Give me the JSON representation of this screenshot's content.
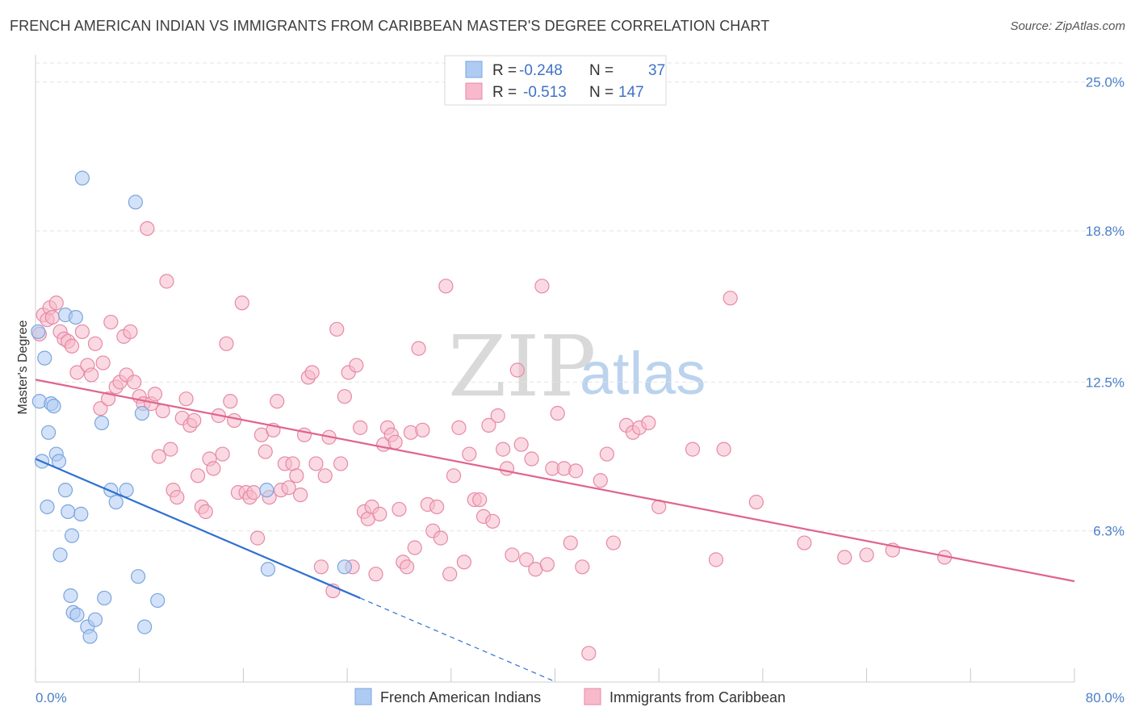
{
  "header": {
    "title": "FRENCH AMERICAN INDIAN VS IMMIGRANTS FROM CARIBBEAN MASTER'S DEGREE CORRELATION CHART",
    "source": "Source: ZipAtlas.com"
  },
  "watermark": {
    "zip": "ZIP",
    "atlas": "atlas"
  },
  "legend_box": {
    "rows": [
      {
        "r_label": "R =",
        "r_value": "-0.248",
        "n_label": "N =",
        "n_value": "37",
        "color": "#aecbf2"
      },
      {
        "r_label": "R =",
        "r_value": "-0.513",
        "n_label": "N =",
        "n_value": "147",
        "color": "#f7b9cb"
      }
    ]
  },
  "chart_data": {
    "type": "scatter",
    "title": "FRENCH AMERICAN INDIAN VS IMMIGRANTS FROM CARIBBEAN MASTER'S DEGREE CORRELATION CHART",
    "xlabel": "",
    "ylabel": "Master's Degree",
    "xlim": [
      0,
      80
    ],
    "ylim": [
      0,
      26
    ],
    "x_tick_labels": [
      "0.0%",
      "80.0%"
    ],
    "y_ticks": [
      6.3,
      12.5,
      18.8,
      25.0
    ],
    "y_tick_labels": [
      "6.3%",
      "12.5%",
      "18.8%",
      "25.0%"
    ],
    "grid": true,
    "legend_position": "bottom",
    "series": [
      {
        "name": "French American Indians",
        "color": "#aecbf2",
        "stroke": "#7aa6de",
        "trend": {
          "x0": 0,
          "y0": 9.3,
          "x1": 25,
          "y1": 3.5,
          "dashed_to_x": 40,
          "color": "#2f6fd1"
        },
        "points": [
          [
            0.2,
            14.6
          ],
          [
            0.3,
            11.7
          ],
          [
            0.5,
            9.2
          ],
          [
            0.7,
            13.5
          ],
          [
            0.9,
            7.3
          ],
          [
            1.0,
            10.4
          ],
          [
            1.2,
            11.6
          ],
          [
            1.4,
            11.5
          ],
          [
            1.6,
            9.5
          ],
          [
            1.8,
            9.2
          ],
          [
            1.9,
            5.3
          ],
          [
            2.3,
            15.3
          ],
          [
            2.3,
            8.0
          ],
          [
            2.5,
            7.1
          ],
          [
            2.7,
            3.6
          ],
          [
            2.8,
            6.1
          ],
          [
            2.9,
            2.9
          ],
          [
            3.1,
            15.2
          ],
          [
            3.2,
            2.8
          ],
          [
            3.5,
            7.0
          ],
          [
            3.6,
            21.0
          ],
          [
            4.0,
            2.3
          ],
          [
            4.2,
            1.9
          ],
          [
            4.6,
            2.6
          ],
          [
            5.1,
            10.8
          ],
          [
            5.3,
            3.5
          ],
          [
            5.8,
            8.0
          ],
          [
            6.2,
            7.5
          ],
          [
            7.0,
            8.0
          ],
          [
            7.7,
            20.0
          ],
          [
            7.9,
            4.4
          ],
          [
            8.2,
            11.2
          ],
          [
            8.4,
            2.3
          ],
          [
            9.4,
            3.4
          ],
          [
            17.8,
            8.0
          ],
          [
            17.9,
            4.7
          ],
          [
            23.8,
            4.8
          ]
        ]
      },
      {
        "name": "Immigrants from Caribbean",
        "color": "#f7b9cb",
        "stroke": "#e58aa6",
        "trend": {
          "x0": 0,
          "y0": 12.6,
          "x1": 80,
          "y1": 4.2,
          "color": "#e0648f"
        },
        "points": [
          [
            0.3,
            14.5
          ],
          [
            0.6,
            15.3
          ],
          [
            0.9,
            15.1
          ],
          [
            1.1,
            15.6
          ],
          [
            1.3,
            15.2
          ],
          [
            1.6,
            15.8
          ],
          [
            1.9,
            14.6
          ],
          [
            2.2,
            14.3
          ],
          [
            2.5,
            14.2
          ],
          [
            2.8,
            14.0
          ],
          [
            3.2,
            12.9
          ],
          [
            3.6,
            14.6
          ],
          [
            4.0,
            13.2
          ],
          [
            4.3,
            12.8
          ],
          [
            4.6,
            14.1
          ],
          [
            5.0,
            11.4
          ],
          [
            5.2,
            13.3
          ],
          [
            5.6,
            11.8
          ],
          [
            5.8,
            15.0
          ],
          [
            6.2,
            12.3
          ],
          [
            6.5,
            12.5
          ],
          [
            6.8,
            14.4
          ],
          [
            7.0,
            12.8
          ],
          [
            7.3,
            14.6
          ],
          [
            7.6,
            12.5
          ],
          [
            8.0,
            11.9
          ],
          [
            8.3,
            11.6
          ],
          [
            8.6,
            18.9
          ],
          [
            8.9,
            11.6
          ],
          [
            9.2,
            12.0
          ],
          [
            9.5,
            9.4
          ],
          [
            9.8,
            11.3
          ],
          [
            10.1,
            16.7
          ],
          [
            10.4,
            9.7
          ],
          [
            10.6,
            8.0
          ],
          [
            10.9,
            7.7
          ],
          [
            11.3,
            11.0
          ],
          [
            11.6,
            11.8
          ],
          [
            11.9,
            10.7
          ],
          [
            12.2,
            10.9
          ],
          [
            12.5,
            8.6
          ],
          [
            12.8,
            7.3
          ],
          [
            13.1,
            7.1
          ],
          [
            13.4,
            9.3
          ],
          [
            13.7,
            8.9
          ],
          [
            14.1,
            11.1
          ],
          [
            14.4,
            9.5
          ],
          [
            14.7,
            14.1
          ],
          [
            15.0,
            11.7
          ],
          [
            15.3,
            10.9
          ],
          [
            15.6,
            7.9
          ],
          [
            15.9,
            15.8
          ],
          [
            16.2,
            7.9
          ],
          [
            16.5,
            7.7
          ],
          [
            16.8,
            7.9
          ],
          [
            17.1,
            6.0
          ],
          [
            17.4,
            10.3
          ],
          [
            17.7,
            9.6
          ],
          [
            18.0,
            7.7
          ],
          [
            18.3,
            10.5
          ],
          [
            18.6,
            11.7
          ],
          [
            18.9,
            8.0
          ],
          [
            19.2,
            9.1
          ],
          [
            19.5,
            8.1
          ],
          [
            19.8,
            9.1
          ],
          [
            20.1,
            8.6
          ],
          [
            20.4,
            7.8
          ],
          [
            20.7,
            10.3
          ],
          [
            21.0,
            12.7
          ],
          [
            21.3,
            12.9
          ],
          [
            21.6,
            9.1
          ],
          [
            22.0,
            4.8
          ],
          [
            22.3,
            8.6
          ],
          [
            22.6,
            10.2
          ],
          [
            22.9,
            3.8
          ],
          [
            23.2,
            14.7
          ],
          [
            23.5,
            9.1
          ],
          [
            23.8,
            11.9
          ],
          [
            24.1,
            12.9
          ],
          [
            24.4,
            4.8
          ],
          [
            24.7,
            13.2
          ],
          [
            25.0,
            10.6
          ],
          [
            25.3,
            7.1
          ],
          [
            25.6,
            6.8
          ],
          [
            25.9,
            7.3
          ],
          [
            26.2,
            4.5
          ],
          [
            26.5,
            7.0
          ],
          [
            26.8,
            9.9
          ],
          [
            27.1,
            10.6
          ],
          [
            27.4,
            10.3
          ],
          [
            27.7,
            10.0
          ],
          [
            28.0,
            7.2
          ],
          [
            28.3,
            5.0
          ],
          [
            28.6,
            4.8
          ],
          [
            28.9,
            10.4
          ],
          [
            29.2,
            5.6
          ],
          [
            29.5,
            13.9
          ],
          [
            29.8,
            10.5
          ],
          [
            30.2,
            7.4
          ],
          [
            30.6,
            6.3
          ],
          [
            30.9,
            7.3
          ],
          [
            31.2,
            6.0
          ],
          [
            31.6,
            16.5
          ],
          [
            31.9,
            4.5
          ],
          [
            32.2,
            8.6
          ],
          [
            32.6,
            10.6
          ],
          [
            33.0,
            5.0
          ],
          [
            33.4,
            9.5
          ],
          [
            33.8,
            7.6
          ],
          [
            34.2,
            7.6
          ],
          [
            34.5,
            6.9
          ],
          [
            34.9,
            10.7
          ],
          [
            35.2,
            6.7
          ],
          [
            35.6,
            11.1
          ],
          [
            36.0,
            9.7
          ],
          [
            36.3,
            8.9
          ],
          [
            36.7,
            5.3
          ],
          [
            37.1,
            13.0
          ],
          [
            37.4,
            9.9
          ],
          [
            37.8,
            5.1
          ],
          [
            38.2,
            9.3
          ],
          [
            38.5,
            4.7
          ],
          [
            39.0,
            16.5
          ],
          [
            39.4,
            4.9
          ],
          [
            39.8,
            8.9
          ],
          [
            40.2,
            11.2
          ],
          [
            40.7,
            8.9
          ],
          [
            41.2,
            5.8
          ],
          [
            41.6,
            8.8
          ],
          [
            42.1,
            4.8
          ],
          [
            42.6,
            1.2
          ],
          [
            43.5,
            8.4
          ],
          [
            44.0,
            9.5
          ],
          [
            44.5,
            5.8
          ],
          [
            45.5,
            10.7
          ],
          [
            46.0,
            10.4
          ],
          [
            46.5,
            10.6
          ],
          [
            47.2,
            10.8
          ],
          [
            48.0,
            7.3
          ],
          [
            50.6,
            9.7
          ],
          [
            52.4,
            5.1
          ],
          [
            53.0,
            9.7
          ],
          [
            53.5,
            16.0
          ],
          [
            55.5,
            7.5
          ],
          [
            59.2,
            5.8
          ],
          [
            62.3,
            5.2
          ],
          [
            64.0,
            5.3
          ],
          [
            66.0,
            5.5
          ],
          [
            70.0,
            5.2
          ]
        ]
      }
    ]
  }
}
